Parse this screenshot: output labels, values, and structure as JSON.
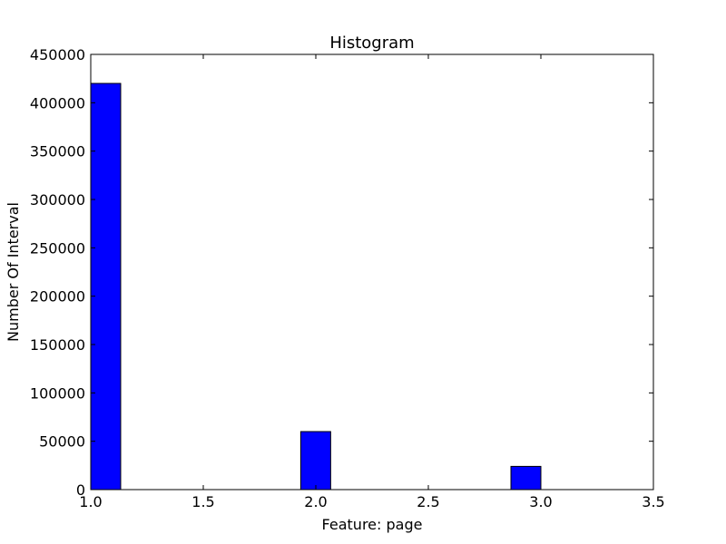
{
  "chart_data": {
    "type": "bar",
    "title": "Histogram",
    "xlabel": "Feature: page",
    "ylabel": "Number Of Interval",
    "xlim": [
      1.0,
      3.5
    ],
    "ylim": [
      0,
      450000
    ],
    "xticks": [
      "1.0",
      "1.5",
      "2.0",
      "2.5",
      "3.0",
      "3.5"
    ],
    "yticks": [
      "0",
      "50000",
      "100000",
      "150000",
      "200000",
      "250000",
      "300000",
      "350000",
      "400000",
      "450000"
    ],
    "bin_width": 0.133,
    "bars": [
      {
        "x_start": 1.0,
        "value": 420000
      },
      {
        "x_start": 1.933,
        "value": 60000
      },
      {
        "x_start": 2.867,
        "value": 24000
      }
    ],
    "bar_color": "#0000ff",
    "grid": false
  }
}
